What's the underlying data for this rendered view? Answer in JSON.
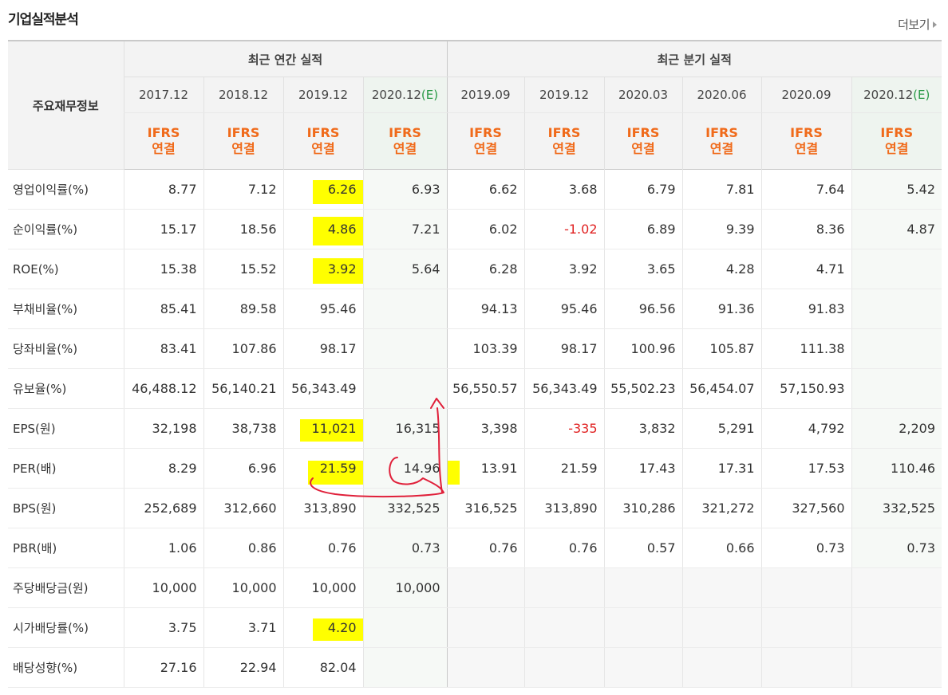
{
  "header": {
    "title": "기업실적분석",
    "more_label": "더보기"
  },
  "table": {
    "corner_label": "주요재무정보",
    "annual_group": "최근 연간 실적",
    "quarter_group": "최근 분기 실적",
    "periods": [
      "2017.12",
      "2018.12",
      "2019.12",
      "2020.12",
      "2019.09",
      "2019.12",
      "2020.03",
      "2020.06",
      "2020.09",
      "2020.12"
    ],
    "estimate_mark": "(E)",
    "basis_line1": "IFRS",
    "basis_line2": "연결",
    "rows": [
      {
        "label": "영업이익률(%)",
        "values": [
          "8.77",
          "7.12",
          "6.26",
          "6.93",
          "6.62",
          "3.68",
          "6.79",
          "7.81",
          "7.64",
          "5.42"
        ]
      },
      {
        "label": "순이익률(%)",
        "values": [
          "15.17",
          "18.56",
          "4.86",
          "7.21",
          "6.02",
          "-1.02",
          "6.89",
          "9.39",
          "8.36",
          "4.87"
        ]
      },
      {
        "label": "ROE(%)",
        "values": [
          "15.38",
          "15.52",
          "3.92",
          "5.64",
          "6.28",
          "3.92",
          "3.65",
          "4.28",
          "4.71",
          ""
        ]
      },
      {
        "label": "부채비율(%)",
        "values": [
          "85.41",
          "89.58",
          "95.46",
          "",
          "94.13",
          "95.46",
          "96.56",
          "91.36",
          "91.83",
          ""
        ]
      },
      {
        "label": "당좌비율(%)",
        "values": [
          "83.41",
          "107.86",
          "98.17",
          "",
          "103.39",
          "98.17",
          "100.96",
          "105.87",
          "111.38",
          ""
        ]
      },
      {
        "label": "유보율(%)",
        "values": [
          "46,488.12",
          "56,140.21",
          "56,343.49",
          "",
          "56,550.57",
          "56,343.49",
          "55,502.23",
          "56,454.07",
          "57,150.93",
          ""
        ]
      },
      {
        "label": "EPS(원)",
        "values": [
          "32,198",
          "38,738",
          "11,021",
          "16,315",
          "3,398",
          "-335",
          "3,832",
          "5,291",
          "4,792",
          "2,209"
        ]
      },
      {
        "label": "PER(배)",
        "values": [
          "8.29",
          "6.96",
          "21.59",
          "14.96",
          "13.91",
          "21.59",
          "17.43",
          "17.31",
          "17.53",
          "110.46"
        ]
      },
      {
        "label": "BPS(원)",
        "values": [
          "252,689",
          "312,660",
          "313,890",
          "332,525",
          "316,525",
          "313,890",
          "310,286",
          "321,272",
          "327,560",
          "332,525"
        ]
      },
      {
        "label": "PBR(배)",
        "values": [
          "1.06",
          "0.86",
          "0.76",
          "0.73",
          "0.76",
          "0.76",
          "0.57",
          "0.66",
          "0.73",
          "0.73"
        ]
      },
      {
        "label": "주당배당금(원)",
        "values": [
          "10,000",
          "10,000",
          "10,000",
          "10,000",
          "",
          "",
          "",
          "",
          "",
          ""
        ]
      },
      {
        "label": "시가배당률(%)",
        "values": [
          "3.75",
          "3.71",
          "4.20",
          "",
          "",
          "",
          "",
          "",
          "",
          ""
        ]
      },
      {
        "label": "배당성향(%)",
        "values": [
          "27.16",
          "22.94",
          "82.04",
          "",
          "",
          "",
          "",
          "",
          "",
          ""
        ]
      }
    ]
  },
  "colors": {
    "basis": "#f06a1a",
    "estimate": "#2a9a47",
    "negative": "#e02020",
    "highlight": "#ffff00",
    "annotation": "#e0203a"
  }
}
